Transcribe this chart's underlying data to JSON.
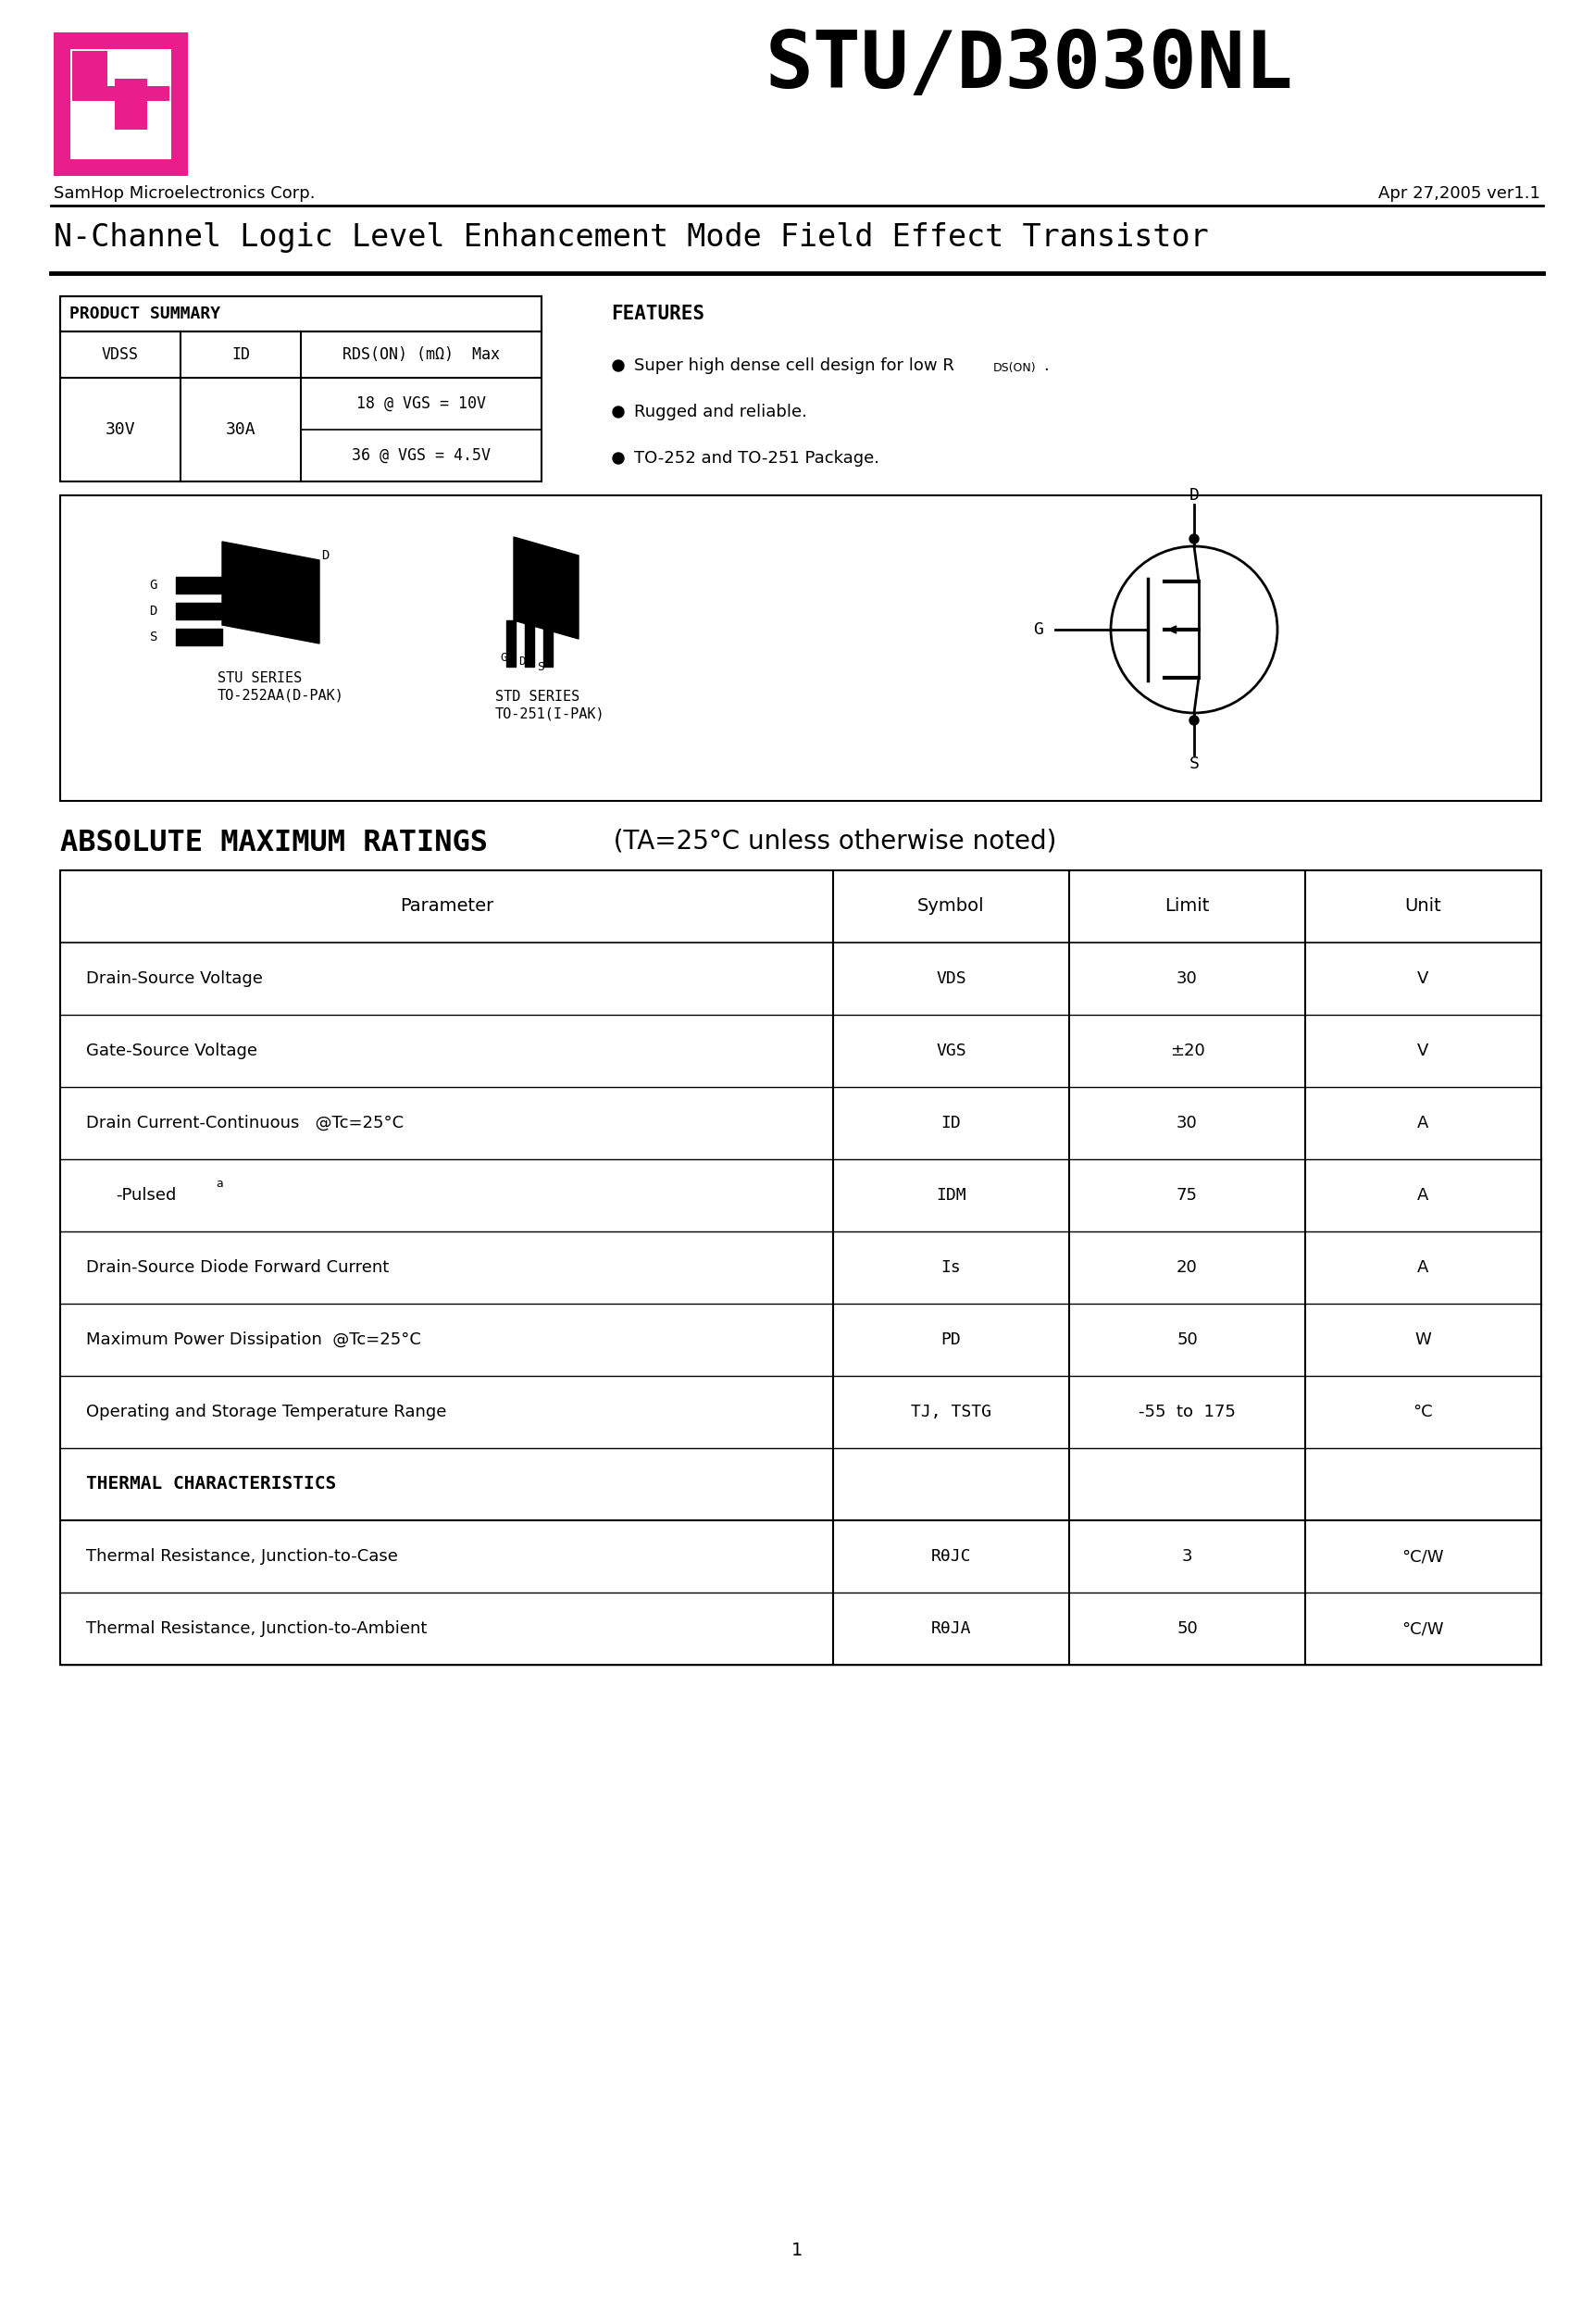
{
  "title": "STU/D3030NL",
  "company": "SamHop Microelectronics Corp.",
  "date": "Apr 27,2005 ver1.1",
  "subtitle": "N-Channel Logic Level Enhancement Mode Field Effect Transistor",
  "features_title": "FEATURES",
  "features": [
    "Super high dense cell design for low R",
    "Rugged and reliable.",
    "TO-252 and TO-251 Package."
  ],
  "stu_label1": "STU SERIES",
  "stu_label2": "TO-252AA(D-PAK)",
  "std_label1": "STD SERIES",
  "std_label2": "TO-251(I-PAK)",
  "abs_max_title": "ABSOLUTE MAXIMUM RATINGS",
  "abs_max_subtitle": "  (TA=25°C unless otherwise noted)",
  "abs_max_headers": [
    "Parameter",
    "Symbol",
    "Limit",
    "Unit"
  ],
  "abs_max_rows": [
    [
      "Drain-Source Voltage",
      "VDS",
      "30",
      "V"
    ],
    [
      "Gate-Source Voltage",
      "VGS",
      "±20",
      "V"
    ],
    [
      "Drain Current-Continuous   @Tc=25°C",
      "ID",
      "30",
      "A"
    ],
    [
      "-Pulsed",
      "IDM",
      "75",
      "A"
    ],
    [
      "Drain-Source Diode Forward Current",
      "Is",
      "20",
      "A"
    ],
    [
      "Maximum Power Dissipation  @Tc=25°C",
      "PD",
      "50",
      "W"
    ],
    [
      "Operating and Storage Temperature Range",
      "TJ, TSTG",
      "-55  to  175",
      "°C"
    ]
  ],
  "thermal_title": "THERMAL CHARACTERISTICS",
  "thermal_rows": [
    [
      "Thermal Resistance, Junction-to-Case",
      "RθJC",
      "3",
      "°C/W"
    ],
    [
      "Thermal Resistance, Junction-to-Ambient",
      "RθJA",
      "50",
      "°C/W"
    ]
  ],
  "page_number": "1",
  "logo_color": "#E91E8C",
  "bg_color": "#FFFFFF"
}
